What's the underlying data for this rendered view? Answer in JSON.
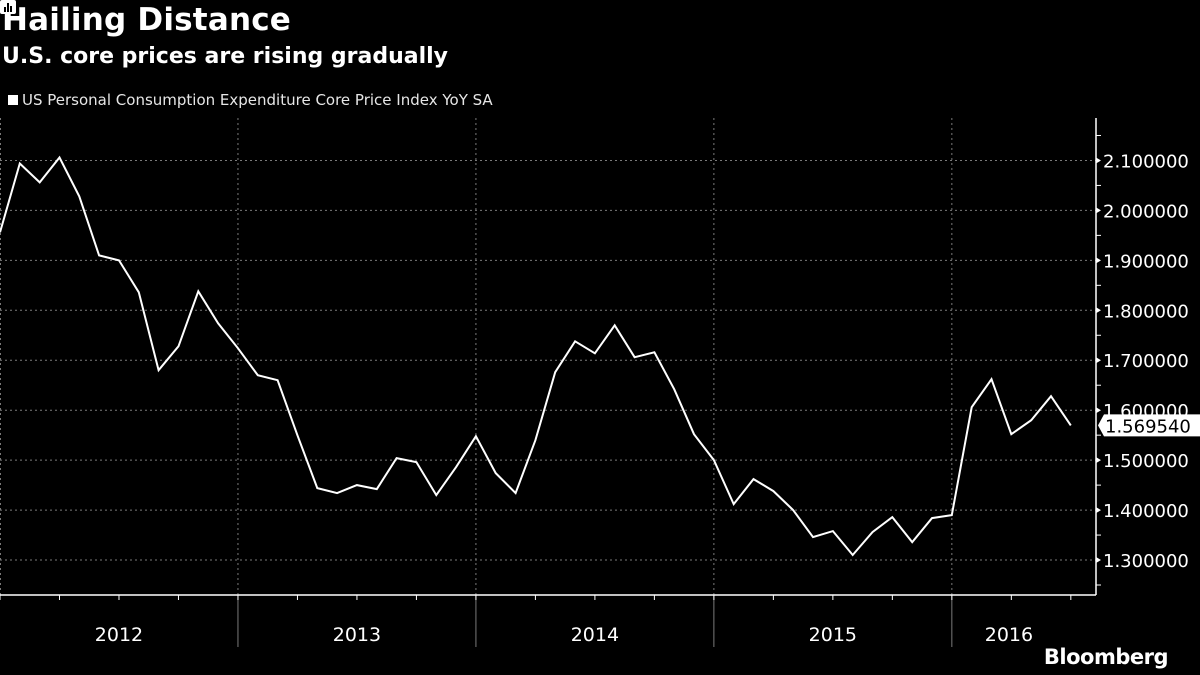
{
  "chart_data": {
    "type": "line",
    "title": "Hailing Distance",
    "subtitle": "U.S. core prices are rising gradually",
    "legend": [
      "US Personal Consumption Expenditure Core Price Index YoY SA"
    ],
    "legend_position": "top-left",
    "xlabel": "",
    "ylabel": "",
    "x_tick_labels": [
      "2012",
      "2013",
      "2014",
      "2015",
      "2016"
    ],
    "y_tick_labels": [
      "1.300000",
      "1.400000",
      "1.500000",
      "1.600000",
      "1.700000",
      "1.800000",
      "1.900000",
      "2.000000",
      "2.100000"
    ],
    "y_ticks": [
      1.3,
      1.4,
      1.5,
      1.6,
      1.7,
      1.8,
      1.9,
      2.0,
      2.1
    ],
    "ylim": [
      1.23,
      2.185
    ],
    "grid": true,
    "last_value_label": "1.569540",
    "series": [
      {
        "name": "US Personal Consumption Expenditure Core Price Index YoY SA",
        "color": "#ffffff",
        "start": "2012-01",
        "frequency": "monthly",
        "values": [
          1.956,
          2.094,
          2.056,
          2.106,
          2.028,
          1.91,
          1.9,
          1.836,
          1.68,
          1.728,
          1.838,
          1.774,
          1.724,
          1.67,
          1.66,
          1.55,
          1.444,
          1.434,
          1.45,
          1.442,
          1.504,
          1.496,
          1.43,
          1.486,
          1.548,
          1.474,
          1.434,
          1.54,
          1.676,
          1.738,
          1.714,
          1.77,
          1.706,
          1.716,
          1.642,
          1.552,
          1.5,
          1.412,
          1.462,
          1.438,
          1.4,
          1.346,
          1.358,
          1.31,
          1.356,
          1.386,
          1.336,
          1.384,
          1.39,
          1.606,
          1.662,
          1.552,
          1.58,
          1.628,
          1.56954
        ]
      }
    ]
  },
  "branding": {
    "logo_text": "Bloomberg"
  },
  "colors": {
    "background": "#000000",
    "line": "#ffffff",
    "grid": "#808080"
  }
}
